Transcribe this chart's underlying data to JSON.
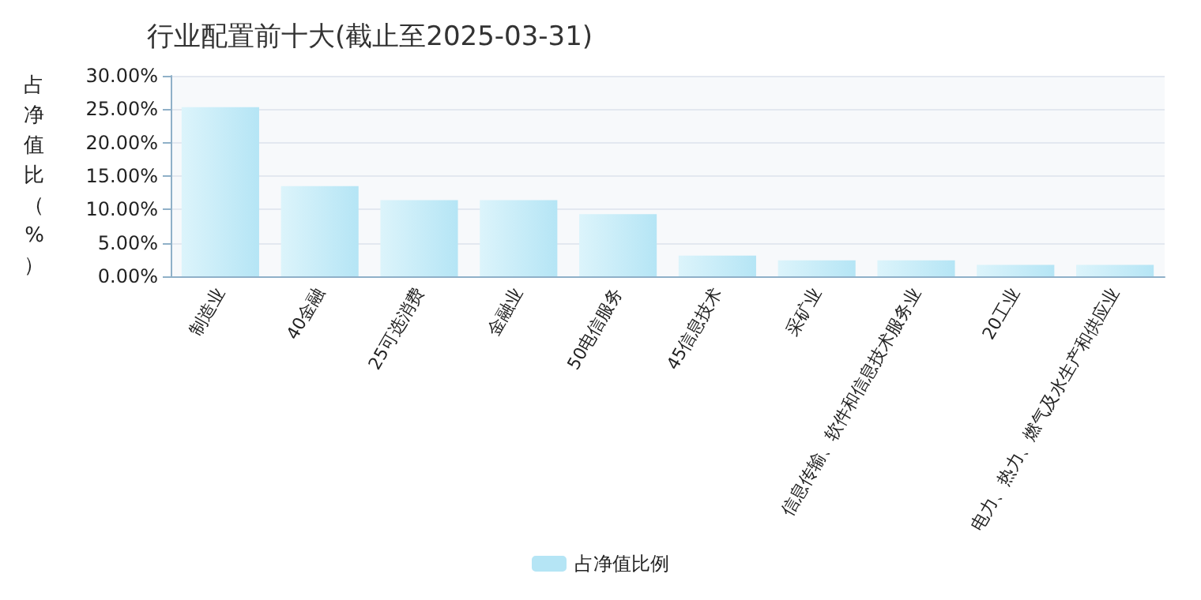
{
  "chart_data": {
    "type": "bar",
    "title": "行业配置前十大(截止至2025-03-31)",
    "ylabel": "占净值比（%）",
    "categories": [
      "制造业",
      "40金融",
      "25可选消费",
      "金融业",
      "50电信服务",
      "45信息技术",
      "采矿业",
      "信息传输、软件和信息技术服务业",
      "20工业",
      "电力、热力、燃气及水生产和供应业"
    ],
    "series": [
      {
        "name": "占净值比例",
        "color": "#b5e5f5",
        "values": [
          25.3,
          13.5,
          11.4,
          11.4,
          9.3,
          3.1,
          2.4,
          2.4,
          1.7,
          1.7
        ]
      }
    ],
    "ylim": [
      0,
      30
    ],
    "yticks": [
      {
        "value": 0,
        "label": "0.00%"
      },
      {
        "value": 5,
        "label": "5.00%"
      },
      {
        "value": 10,
        "label": "10.00%"
      },
      {
        "value": 15,
        "label": "15.00%"
      },
      {
        "value": 20,
        "label": "20.00%"
      },
      {
        "value": 25,
        "label": "25.00%"
      },
      {
        "value": 30,
        "label": "30.00%"
      }
    ],
    "grid": "y",
    "legend": "bottom"
  }
}
